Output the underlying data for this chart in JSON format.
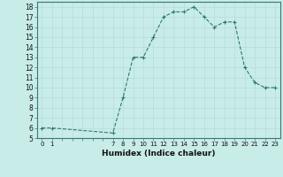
{
  "x": [
    0,
    1,
    7,
    8,
    9,
    10,
    11,
    12,
    13,
    14,
    15,
    16,
    17,
    18,
    19,
    20,
    21,
    22,
    23
  ],
  "y": [
    6,
    6,
    5.5,
    9,
    13,
    13,
    15,
    17,
    17.5,
    17.5,
    18,
    17,
    16,
    16.5,
    16.5,
    12,
    10.5,
    10,
    10
  ],
  "line_color": "#2d7a6e",
  "bg_color": "#c8ece8",
  "grid_color": "#b8dcd8",
  "xlabel": "Humidex (Indice chaleur)",
  "ylim": [
    5,
    18.5
  ],
  "xlim": [
    -0.5,
    23.5
  ],
  "yticks": [
    5,
    6,
    7,
    8,
    9,
    10,
    11,
    12,
    13,
    14,
    15,
    16,
    17,
    18
  ],
  "xtick_show": [
    0,
    1,
    7,
    8,
    9,
    10,
    11,
    12,
    13,
    14,
    15,
    16,
    17,
    18,
    19,
    20,
    21,
    22,
    23
  ]
}
